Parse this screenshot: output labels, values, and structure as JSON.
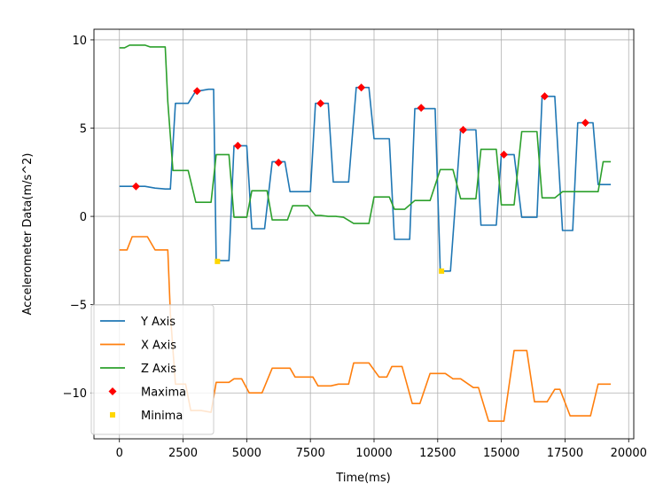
{
  "chart_data": {
    "type": "line",
    "xlabel": "Time(ms)",
    "ylabel": "Accelerometer Data(m/s^2)",
    "xlim": [
      -1000,
      20200
    ],
    "ylim": [
      -12.6,
      10.6
    ],
    "xticks": [
      0,
      2500,
      5000,
      7500,
      10000,
      12500,
      15000,
      17500,
      20000
    ],
    "yticks": [
      -10,
      -5,
      0,
      5,
      10
    ],
    "grid": true,
    "legend_position": "lower-left",
    "series": [
      {
        "name": "Y Axis",
        "color": "#1f77b4",
        "x": [
          0,
          700,
          1000,
          1400,
          1800,
          2000,
          2200,
          2700,
          3000,
          3100,
          3500,
          3700,
          3800,
          4000,
          4300,
          4500,
          4700,
          5000,
          5200,
          5300,
          5700,
          6000,
          6300,
          6500,
          6700,
          7000,
          7500,
          7700,
          7900,
          8200,
          8400,
          8700,
          9000,
          9300,
          9600,
          9800,
          10000,
          10600,
          10800,
          11100,
          11400,
          11600,
          12000,
          12400,
          12600,
          12800,
          13000,
          13400,
          13600,
          14000,
          14200,
          14500,
          14800,
          15000,
          15200,
          15500,
          15800,
          16100,
          16400,
          16600,
          16800,
          17100,
          17400,
          17600,
          17800,
          18000,
          18200,
          18600,
          18800,
          19000,
          19300
        ],
        "y": [
          1.7,
          1.7,
          1.7,
          1.6,
          1.55,
          1.55,
          6.4,
          6.4,
          7.1,
          7.1,
          7.2,
          7.2,
          -2.5,
          -2.5,
          -2.5,
          4.0,
          4.0,
          4.0,
          -0.7,
          -0.7,
          -0.7,
          3.1,
          3.1,
          3.1,
          1.4,
          1.4,
          1.4,
          6.4,
          6.4,
          6.4,
          1.95,
          1.95,
          1.95,
          7.3,
          7.3,
          7.3,
          4.4,
          4.4,
          -1.3,
          -1.3,
          -1.3,
          6.1,
          6.1,
          6.1,
          -3.1,
          -3.1,
          -3.1,
          4.9,
          4.9,
          4.9,
          -0.5,
          -0.5,
          -0.5,
          3.5,
          3.5,
          3.5,
          -0.05,
          -0.05,
          -0.05,
          6.8,
          6.8,
          6.8,
          -0.8,
          -0.8,
          -0.8,
          5.3,
          5.3,
          5.3,
          1.8,
          1.8,
          1.8
        ]
      },
      {
        "name": "X Axis",
        "color": "#ff7f0e",
        "x": [
          0,
          300,
          500,
          800,
          1100,
          1400,
          1700,
          1900,
          2000,
          2200,
          2600,
          2800,
          3200,
          3600,
          3800,
          4300,
          4500,
          4800,
          5100,
          5400,
          5600,
          6000,
          6300,
          6700,
          6900,
          7300,
          7600,
          7800,
          8300,
          8600,
          9000,
          9200,
          9600,
          9800,
          10200,
          10500,
          10700,
          11100,
          11500,
          11800,
          12200,
          12500,
          12800,
          13100,
          13400,
          13900,
          14100,
          14500,
          14700,
          15100,
          15500,
          15700,
          16000,
          16300,
          16500,
          16800,
          17100,
          17300,
          17700,
          18100,
          18500,
          18800,
          19300
        ],
        "y": [
          -1.9,
          -1.9,
          -1.15,
          -1.15,
          -1.15,
          -1.9,
          -1.9,
          -1.9,
          -5.5,
          -9.5,
          -9.5,
          -11.0,
          -11.0,
          -11.1,
          -9.4,
          -9.4,
          -9.2,
          -9.2,
          -10.0,
          -10.0,
          -10.0,
          -8.6,
          -8.6,
          -8.6,
          -9.1,
          -9.1,
          -9.1,
          -9.6,
          -9.6,
          -9.5,
          -9.5,
          -8.3,
          -8.3,
          -8.3,
          -9.1,
          -9.1,
          -8.5,
          -8.5,
          -10.6,
          -10.6,
          -8.9,
          -8.9,
          -8.9,
          -9.2,
          -9.2,
          -9.7,
          -9.7,
          -11.6,
          -11.6,
          -11.6,
          -7.6,
          -7.6,
          -7.6,
          -10.5,
          -10.5,
          -10.5,
          -9.8,
          -9.8,
          -11.3,
          -11.3,
          -11.3,
          -9.5,
          -9.5
        ]
      },
      {
        "name": "Z Axis",
        "color": "#2ca02c",
        "x": [
          0,
          200,
          400,
          600,
          1000,
          1200,
          1400,
          1800,
          1900,
          2100,
          2200,
          2700,
          3000,
          3300,
          3600,
          3800,
          4000,
          4300,
          4500,
          4700,
          5000,
          5200,
          5500,
          5800,
          6000,
          6200,
          6600,
          6800,
          7100,
          7400,
          7700,
          7900,
          8200,
          8500,
          8800,
          9200,
          9400,
          9800,
          10000,
          10200,
          10600,
          10800,
          11200,
          11600,
          11800,
          12200,
          12600,
          12800,
          13100,
          13400,
          13600,
          14000,
          14200,
          14400,
          14800,
          15000,
          15200,
          15500,
          15800,
          16100,
          16400,
          16600,
          16800,
          17100,
          17400,
          17600,
          18000,
          18400,
          18800,
          19000,
          19300
        ],
        "y": [
          9.55,
          9.55,
          9.7,
          9.7,
          9.7,
          9.6,
          9.6,
          9.6,
          6.5,
          2.6,
          2.6,
          2.6,
          0.8,
          0.8,
          0.8,
          3.5,
          3.5,
          3.5,
          -0.05,
          -0.05,
          -0.05,
          1.45,
          1.45,
          1.45,
          -0.2,
          -0.2,
          -0.2,
          0.6,
          0.6,
          0.6,
          0.05,
          0.05,
          0.0,
          0.0,
          -0.05,
          -0.4,
          -0.4,
          -0.4,
          1.1,
          1.1,
          1.1,
          0.4,
          0.4,
          0.9,
          0.9,
          0.9,
          2.65,
          2.65,
          2.65,
          1.0,
          1.0,
          1.0,
          3.8,
          3.8,
          3.8,
          0.65,
          0.65,
          0.65,
          4.8,
          4.8,
          4.8,
          1.05,
          1.05,
          1.05,
          1.4,
          1.4,
          1.4,
          1.4,
          1.4,
          3.1,
          3.1
        ]
      }
    ],
    "maxima": {
      "name": "Maxima",
      "color": "#ff0000",
      "x": [
        650,
        3050,
        4650,
        6250,
        7900,
        9500,
        11850,
        13500,
        15100,
        16700,
        18300
      ],
      "y": [
        1.7,
        7.1,
        4.0,
        3.05,
        6.4,
        7.3,
        6.15,
        4.9,
        3.5,
        6.8,
        5.3
      ]
    },
    "minima": {
      "name": "Minima",
      "color": "#ffd700",
      "x": [
        3850,
        12650
      ],
      "y": [
        -2.55,
        -3.1
      ]
    }
  }
}
